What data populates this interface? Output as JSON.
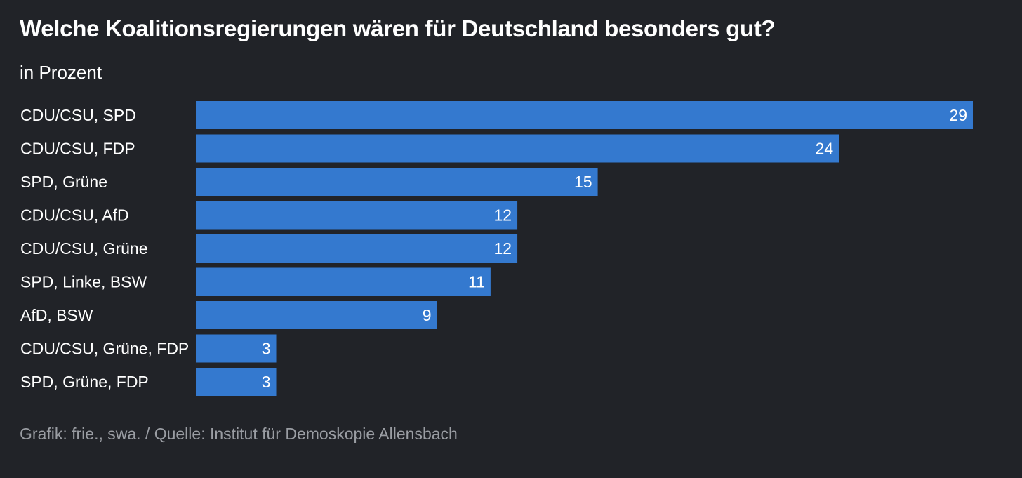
{
  "chart_data": {
    "type": "bar",
    "orientation": "horizontal",
    "title": "Welche Koalitionsregierungen wären für Deutschland besonders gut?",
    "subtitle": "in Prozent",
    "categories": [
      "CDU/CSU, SPD",
      "CDU/CSU, FDP",
      "SPD, Grüne",
      "CDU/CSU, AfD",
      "CDU/CSU, Grüne",
      "SPD, Linke, BSW",
      "AfD, BSW",
      "CDU/CSU, Grüne, FDP",
      "SPD, Grüne, FDP"
    ],
    "values": [
      29,
      24,
      15,
      12,
      12,
      11,
      9,
      3,
      3
    ],
    "xlim": [
      0,
      29
    ],
    "xlabel": "",
    "ylabel": "",
    "grid": false,
    "legend": "none",
    "data_labels": "inside-end",
    "source": "Grafik: frie., swa. / Quelle: Institut für Demoskopie Allensbach"
  },
  "colors": {
    "bar": "#3479cf",
    "background": "#212328",
    "text": "#ffffff",
    "muted_text": "#9a9da3"
  }
}
